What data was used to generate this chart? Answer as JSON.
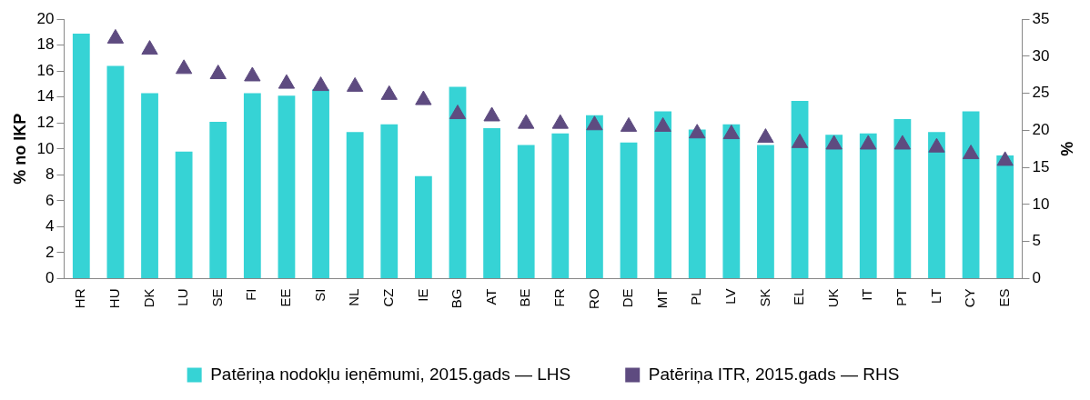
{
  "chart_data": {
    "type": "bar",
    "ylabel": "% no IKP",
    "y2label": "%",
    "categories": [
      "HR",
      "HU",
      "DK",
      "LU",
      "SE",
      "FI",
      "EE",
      "SI",
      "NL",
      "CZ",
      "IE",
      "BG",
      "AT",
      "BE",
      "FR",
      "RO",
      "DE",
      "MT",
      "PL",
      "LV",
      "SK",
      "EL",
      "UK",
      "IT",
      "PT",
      "LT",
      "CY",
      "ES"
    ],
    "series": [
      {
        "name": "Patēriņa nodokļu ieņēmumi, 2015.gads — LHS",
        "color": "#36d3d5",
        "values": [
          18.9,
          16.4,
          14.3,
          9.8,
          12.1,
          14.3,
          14.1,
          14.6,
          11.3,
          11.9,
          7.9,
          14.8,
          11.6,
          10.3,
          11.2,
          12.6,
          10.5,
          12.9,
          11.5,
          11.9,
          10.3,
          13.7,
          11.1,
          11.2,
          12.3,
          11.3,
          12.9,
          9.5
        ]
      },
      {
        "name": "Patēriņa ITR, 2015.gads — RHS",
        "type": "scatter",
        "axis": "y2",
        "marker": "triangle",
        "color": "#5e4b80",
        "values": [
          null,
          32.4,
          30.9,
          28.3,
          27.6,
          27.3,
          26.3,
          26.0,
          25.9,
          24.8,
          24.1,
          22.2,
          21.9,
          20.9,
          20.9,
          20.7,
          20.5,
          20.5,
          19.6,
          19.5,
          19.0,
          18.3,
          18.1,
          18.1,
          18.1,
          17.7,
          16.8,
          15.9
        ]
      }
    ],
    "ylim": [
      0,
      20
    ],
    "yticks": [
      0,
      2,
      4,
      6,
      8,
      10,
      12,
      14,
      16,
      18,
      20
    ],
    "y2lim": [
      0,
      35
    ],
    "y2ticks": [
      0,
      5,
      10,
      15,
      20,
      25,
      30,
      35
    ],
    "grid": false,
    "legend": "bottom"
  }
}
